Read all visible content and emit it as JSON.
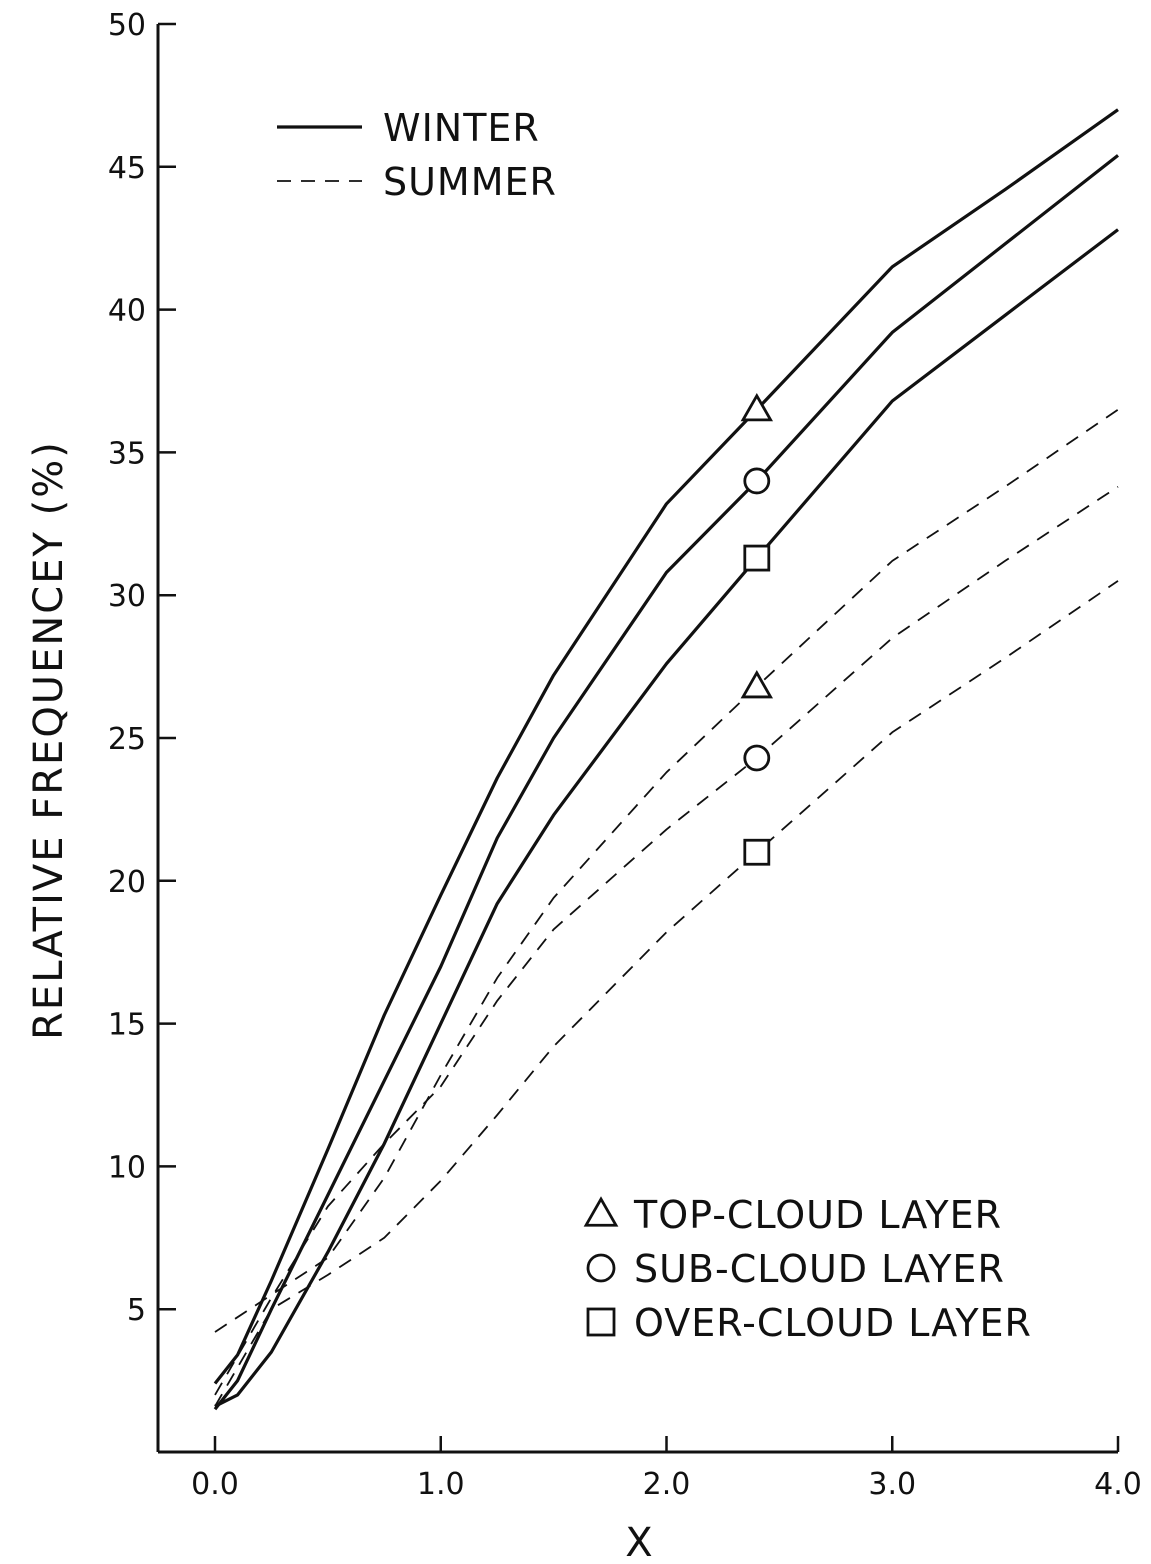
{
  "chart_data": {
    "type": "line",
    "xlabel": "X",
    "ylabel": "RELATIVE FREQUENCEY (%)",
    "xlim": [
      0.0,
      4.0
    ],
    "ylim": [
      0,
      50
    ],
    "x_ticks": [
      "0.0",
      "1.0",
      "2.0",
      "3.0",
      "4.0"
    ],
    "y_ticks": [
      "5",
      "10",
      "15",
      "20",
      "25",
      "30",
      "35",
      "40",
      "45",
      "50"
    ],
    "grid": false,
    "legend_season": [
      {
        "label": "WINTER",
        "style": "solid"
      },
      {
        "label": "SUMMER",
        "style": "dashed"
      }
    ],
    "legend_layer": [
      {
        "label": "TOP-CLOUD LAYER",
        "marker": "triangle"
      },
      {
        "label": "SUB-CLOUD LAYER",
        "marker": "circle"
      },
      {
        "label": "OVER-CLOUD LAYER",
        "marker": "square"
      }
    ],
    "series": [
      {
        "season": "WINTER",
        "layer": "TOP-CLOUD LAYER",
        "style": "solid",
        "marker": "triangle",
        "marker_x": 2.4,
        "x": [
          0.0,
          0.1,
          0.25,
          0.5,
          0.75,
          1.0,
          1.25,
          1.5,
          2.0,
          2.4,
          3.0,
          3.5,
          4.0
        ],
        "y": [
          2.4,
          3.4,
          6.0,
          10.6,
          15.3,
          19.5,
          23.6,
          27.2,
          33.2,
          36.5,
          41.5,
          44.2,
          47.0
        ]
      },
      {
        "season": "WINTER",
        "layer": "SUB-CLOUD LAYER",
        "style": "solid",
        "marker": "circle",
        "marker_x": 2.4,
        "x": [
          0.0,
          0.1,
          0.25,
          0.5,
          0.75,
          1.0,
          1.25,
          1.5,
          2.0,
          2.4,
          3.0,
          3.5,
          4.0
        ],
        "y": [
          1.5,
          2.5,
          5.0,
          9.0,
          13.0,
          17.0,
          21.5,
          25.0,
          30.8,
          34.0,
          39.2,
          42.3,
          45.4
        ]
      },
      {
        "season": "WINTER",
        "layer": "OVER-CLOUD LAYER",
        "style": "solid",
        "marker": "square",
        "marker_x": 2.4,
        "x": [
          0.0,
          0.1,
          0.25,
          0.5,
          0.75,
          1.0,
          1.25,
          1.5,
          2.0,
          2.4,
          3.0,
          3.5,
          4.0
        ],
        "y": [
          1.6,
          2.0,
          3.5,
          7.0,
          10.8,
          15.0,
          19.2,
          22.3,
          27.6,
          31.3,
          36.8,
          39.8,
          42.8
        ]
      },
      {
        "season": "SUMMER",
        "layer": "TOP-CLOUD LAYER",
        "style": "dashed",
        "marker": "triangle",
        "marker_x": 2.4,
        "x": [
          0.0,
          0.25,
          0.5,
          0.75,
          1.0,
          1.25,
          1.5,
          2.0,
          2.4,
          3.0,
          3.5,
          4.0
        ],
        "y": [
          4.2,
          5.5,
          6.8,
          9.6,
          13.2,
          16.6,
          19.4,
          23.8,
          26.8,
          31.2,
          33.8,
          36.5
        ]
      },
      {
        "season": "SUMMER",
        "layer": "SUB-CLOUD LAYER",
        "style": "dashed",
        "marker": "circle",
        "marker_x": 2.4,
        "x": [
          0.0,
          0.25,
          0.5,
          0.75,
          1.0,
          1.25,
          1.5,
          2.0,
          2.4,
          3.0,
          3.5,
          4.0
        ],
        "y": [
          2.0,
          5.4,
          8.6,
          10.8,
          12.8,
          15.8,
          18.3,
          21.8,
          24.3,
          28.5,
          31.2,
          33.8
        ]
      },
      {
        "season": "SUMMER",
        "layer": "OVER-CLOUD LAYER",
        "style": "dashed",
        "marker": "square",
        "marker_x": 2.4,
        "x": [
          0.0,
          0.25,
          0.5,
          0.75,
          1.0,
          1.25,
          1.5,
          2.0,
          2.4,
          3.0,
          3.5,
          4.0
        ],
        "y": [
          1.6,
          5.0,
          6.2,
          7.5,
          9.5,
          11.8,
          14.2,
          18.2,
          21.0,
          25.2,
          27.8,
          30.5
        ]
      }
    ]
  }
}
